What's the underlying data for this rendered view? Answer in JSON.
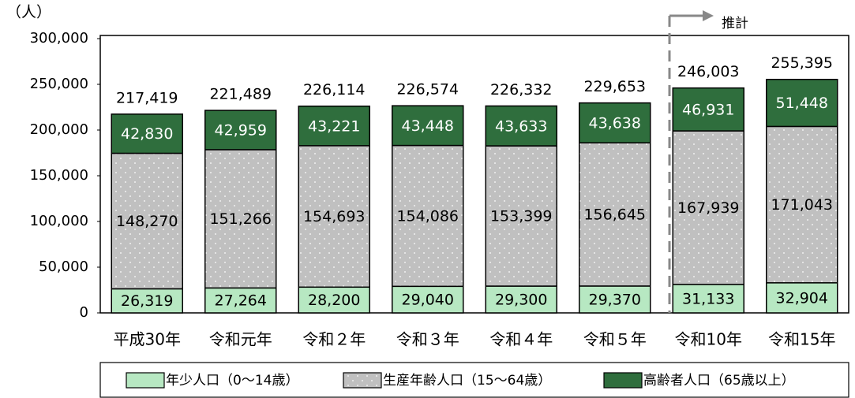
{
  "chart_data": {
    "type": "stacked_bar",
    "y_axis_label": "（人）",
    "annotation": "推計",
    "categories": [
      "平成30年",
      "令和元年",
      "令和２年",
      "令和３年",
      "令和４年",
      "令和５年",
      "令和10年",
      "令和15年"
    ],
    "series": [
      {
        "name": "年少人口（0～14歳）",
        "color": "#b7e8c2",
        "values": [
          26319,
          27264,
          28200,
          29040,
          29300,
          29370,
          31133,
          32904
        ],
        "value_labels": [
          "26,319",
          "27,264",
          "28,200",
          "29,040",
          "29,300",
          "29,370",
          "31,133",
          "32,904"
        ]
      },
      {
        "name": "生産年齢人口（15～64歳）",
        "color": "#c0c0c0",
        "values": [
          148270,
          151266,
          154693,
          154086,
          153399,
          156645,
          167939,
          171043
        ],
        "value_labels": [
          "148,270",
          "151,266",
          "154,693",
          "154,086",
          "153,399",
          "156,645",
          "167,939",
          "171,043"
        ]
      },
      {
        "name": "高齢者人口（65歳以上）",
        "color": "#2f6e3d",
        "values": [
          42830,
          42959,
          43221,
          43448,
          43633,
          43638,
          46931,
          51448
        ],
        "value_labels": [
          "42,830",
          "42,959",
          "43,221",
          "43,448",
          "43,633",
          "43,638",
          "46,931",
          "51,448"
        ]
      }
    ],
    "totals": [
      217419,
      221489,
      226114,
      226574,
      226332,
      229653,
      246003,
      255395
    ],
    "total_labels": [
      "217,419",
      "221,489",
      "226,114",
      "226,574",
      "226,332",
      "229,653",
      "246,003",
      "255,395"
    ],
    "ylim": [
      0,
      300000
    ],
    "yticks": [
      0,
      {
        "value": 50000,
        "label": "50,000"
      },
      {
        "value": 100000,
        "label": "100,000"
      },
      {
        "value": 150000,
        "label": "150,000"
      },
      {
        "value": 200000,
        "label": "200,000"
      },
      {
        "value": 250000,
        "label": "250,000"
      },
      {
        "value": 300000,
        "label": "300,000"
      }
    ]
  }
}
